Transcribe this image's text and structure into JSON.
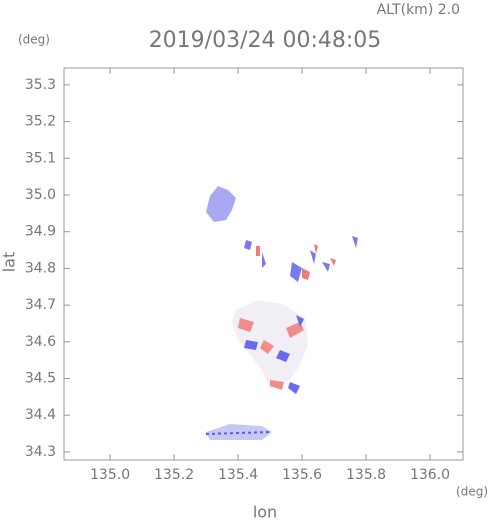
{
  "chart_data": {
    "type": "radar-map",
    "title": "2019/03/24 00:48:05",
    "annotation": "ALT(km) 2.0",
    "xlabel": "lon",
    "ylabel": "lat",
    "xunit": "(deg)",
    "yunit": "(deg)",
    "xlim": [
      134.856,
      136.103
    ],
    "ylim": [
      34.278,
      35.346
    ],
    "xticks": [
      {
        "value": 135.0,
        "label": "135.0"
      },
      135.2,
      135.4,
      135.6,
      135.8,
      {
        "value": 136.0,
        "label": "136.0"
      }
    ],
    "yticks": [
      34.3,
      34.4,
      34.5,
      34.6,
      34.7,
      34.8,
      34.9,
      {
        "value": 35.0,
        "label": "35.0"
      },
      35.1,
      35.2,
      35.3
    ]
  }
}
